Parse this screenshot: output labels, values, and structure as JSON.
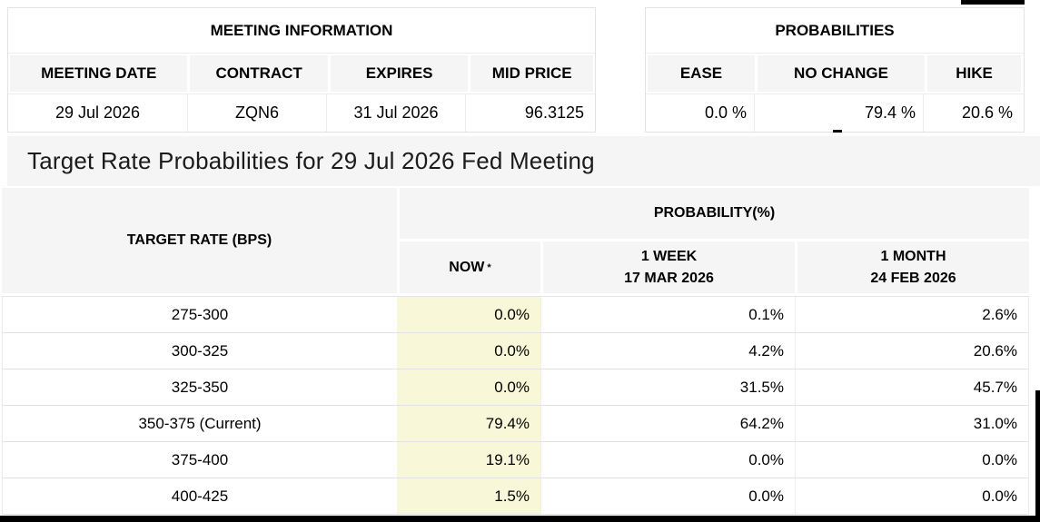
{
  "meeting_information": {
    "title": "MEETING INFORMATION",
    "columns": [
      "MEETING DATE",
      "CONTRACT",
      "EXPIRES",
      "MID PRICE"
    ],
    "values": [
      "29 Jul 2026",
      "ZQN6",
      "31 Jul 2026",
      "96.3125"
    ]
  },
  "probabilities": {
    "title": "PROBABILITIES",
    "columns": [
      "EASE",
      "NO CHANGE",
      "HIKE"
    ],
    "values": [
      "0.0 %",
      "79.4 %",
      "20.6 %"
    ]
  },
  "page_title": "Target Rate Probabilities for 29 Jul 2026 Fed Meeting",
  "rate_table": {
    "col_target": "TARGET RATE (BPS)",
    "col_probability": "PROBABILITY(%)",
    "col_now": "NOW",
    "now_asterisk": "*",
    "col_week_line1": "1 WEEK",
    "col_week_line2": "17 MAR 2026",
    "col_month_line1": "1 MONTH",
    "col_month_line2": "24 FEB 2026",
    "rows": [
      {
        "target": "275-300",
        "now": "0.0%",
        "week": "0.1%",
        "month": "2.6%"
      },
      {
        "target": "300-325",
        "now": "0.0%",
        "week": "4.2%",
        "month": "20.6%"
      },
      {
        "target": "325-350",
        "now": "0.0%",
        "week": "31.5%",
        "month": "45.7%"
      },
      {
        "target": "350-375 (Current)",
        "now": "79.4%",
        "week": "64.2%",
        "month": "31.0%"
      },
      {
        "target": "375-400",
        "now": "19.1%",
        "week": "0.0%",
        "month": "0.0%"
      },
      {
        "target": "400-425",
        "now": "1.5%",
        "week": "0.0%",
        "month": "0.0%"
      }
    ]
  },
  "colors": {
    "header_bg": "#f5f5f5",
    "now_highlight": "#f8f8d8",
    "border": "#e3e3e3",
    "edge_bar": "#000000"
  }
}
